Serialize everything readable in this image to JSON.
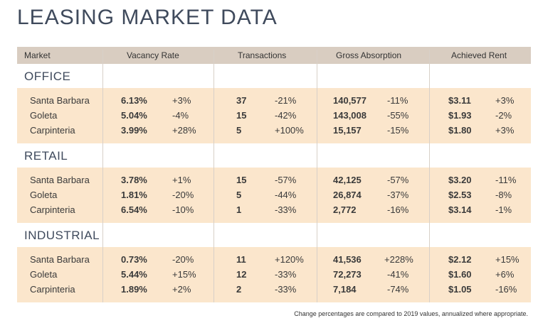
{
  "title": "LEASING MARKET DATA",
  "headers": {
    "market": "Market",
    "vacancy": "Vacancy Rate",
    "transactions": "Transactions",
    "absorption": "Gross Absorption",
    "rent": "Achieved Rent"
  },
  "sections": [
    {
      "name": "OFFICE",
      "rows": [
        {
          "market": "Santa Barbara",
          "vacancy": "6.13%",
          "vacancy_chg": "+3%",
          "trans": "37",
          "trans_chg": "-21%",
          "abs": "140,577",
          "abs_chg": "-11%",
          "rent": "$3.11",
          "rent_chg": "+3%"
        },
        {
          "market": "Goleta",
          "vacancy": "5.04%",
          "vacancy_chg": "-4%",
          "trans": "15",
          "trans_chg": "-42%",
          "abs": "143,008",
          "abs_chg": "-55%",
          "rent": "$1.93",
          "rent_chg": "-2%"
        },
        {
          "market": "Carpinteria",
          "vacancy": "3.99%",
          "vacancy_chg": "+28%",
          "trans": "5",
          "trans_chg": "+100%",
          "abs": "15,157",
          "abs_chg": "-15%",
          "rent": "$1.80",
          "rent_chg": "+3%"
        }
      ]
    },
    {
      "name": "RETAIL",
      "rows": [
        {
          "market": "Santa Barbara",
          "vacancy": "3.78%",
          "vacancy_chg": "+1%",
          "trans": "15",
          "trans_chg": "-57%",
          "abs": "42,125",
          "abs_chg": "-57%",
          "rent": "$3.20",
          "rent_chg": "-11%"
        },
        {
          "market": "Goleta",
          "vacancy": "1.81%",
          "vacancy_chg": "-20%",
          "trans": "5",
          "trans_chg": "-44%",
          "abs": "26,874",
          "abs_chg": "-37%",
          "rent": "$2.53",
          "rent_chg": "-8%"
        },
        {
          "market": "Carpinteria",
          "vacancy": "6.54%",
          "vacancy_chg": "-10%",
          "trans": "1",
          "trans_chg": "-33%",
          "abs": "2,772",
          "abs_chg": "-16%",
          "rent": "$3.14",
          "rent_chg": "-1%"
        }
      ]
    },
    {
      "name": "INDUSTRIAL",
      "rows": [
        {
          "market": "Santa Barbara",
          "vacancy": "0.73%",
          "vacancy_chg": "-20%",
          "trans": "11",
          "trans_chg": "+120%",
          "abs": "41,536",
          "abs_chg": "+228%",
          "rent": "$2.12",
          "rent_chg": "+15%"
        },
        {
          "market": "Goleta",
          "vacancy": "5.44%",
          "vacancy_chg": "+15%",
          "trans": "12",
          "trans_chg": "-33%",
          "abs": "72,273",
          "abs_chg": "-41%",
          "rent": "$1.60",
          "rent_chg": "+6%"
        },
        {
          "market": "Carpinteria",
          "vacancy": "1.89%",
          "vacancy_chg": "+2%",
          "trans": "2",
          "trans_chg": "-33%",
          "abs": "7,184",
          "abs_chg": "-74%",
          "rent": "$1.05",
          "rent_chg": "-16%"
        }
      ]
    }
  ],
  "footnote": "Change percentages are compared to 2019 values, annualized where appropriate."
}
